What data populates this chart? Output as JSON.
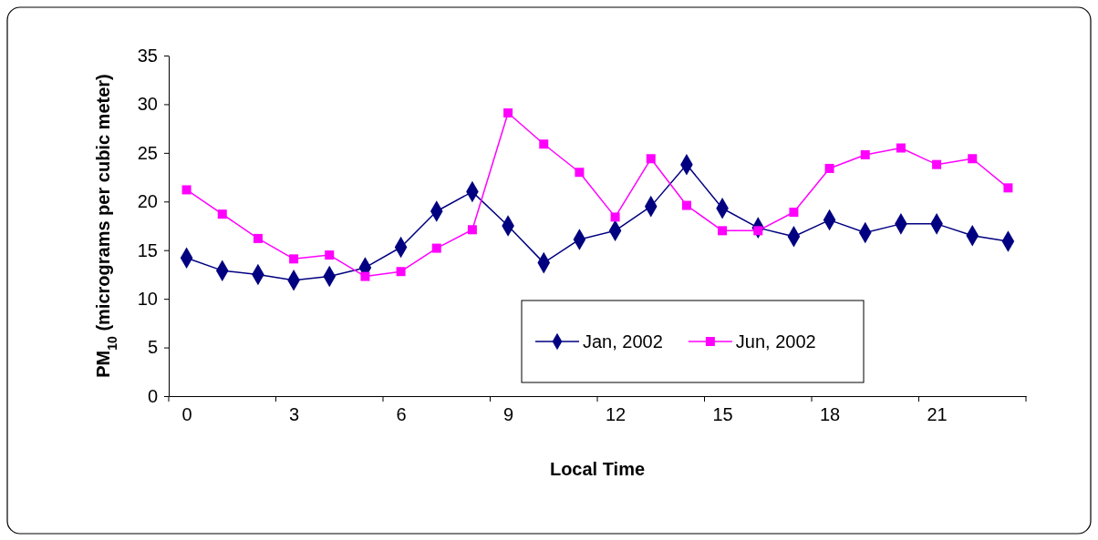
{
  "chart_data": {
    "type": "line",
    "xlabel": "Local Time",
    "ylabel": "PM$_{10}$ (micrograms per cubic meter)",
    "categories": [
      "0",
      null,
      null,
      "3",
      null,
      null,
      "6",
      null,
      null,
      "9",
      null,
      null,
      "12",
      null,
      null,
      "15",
      null,
      null,
      "18",
      null,
      null,
      "21",
      null,
      null
    ],
    "ylim": [
      0,
      35
    ],
    "yticks": [
      0,
      5,
      10,
      15,
      20,
      25,
      30,
      35
    ],
    "grid": false,
    "legend": "bottom",
    "series": [
      {
        "name": "Jan, 2002",
        "color": "#000080",
        "marker": "diamond",
        "values": [
          14.2,
          12.9,
          12.5,
          11.9,
          12.3,
          13.2,
          15.3,
          19.0,
          21.0,
          17.5,
          13.7,
          16.1,
          17.0,
          19.5,
          23.8,
          19.3,
          17.3,
          16.4,
          18.1,
          16.8,
          17.7,
          17.7,
          16.5,
          15.9
        ]
      },
      {
        "name": "Jun, 2002",
        "color": "#ff00ff",
        "marker": "square",
        "values": [
          21.2,
          18.7,
          16.2,
          14.1,
          14.5,
          12.3,
          12.8,
          15.2,
          17.1,
          29.1,
          25.9,
          23.0,
          18.4,
          24.4,
          19.6,
          17.0,
          17.0,
          18.9,
          23.4,
          24.8,
          25.5,
          23.8,
          24.4,
          21.4
        ]
      }
    ]
  }
}
